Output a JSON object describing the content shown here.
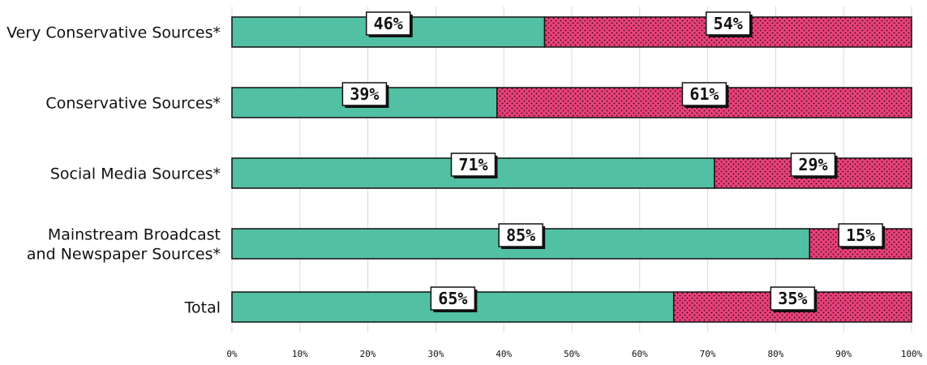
{
  "chart_data": {
    "type": "bar",
    "orientation": "horizontal",
    "stacked": true,
    "categories": [
      "Very Conservative Sources*",
      "Conservative Sources*",
      "Social Media Sources*",
      [
        "Mainstream Broadcast",
        "and Newspaper Sources*"
      ],
      "Total"
    ],
    "series": [
      {
        "values": [
          46,
          39,
          71,
          85,
          65
        ],
        "labels": [
          "46%",
          "39%",
          "71%",
          "85%",
          "65%"
        ],
        "color": "#52c0a3"
      },
      {
        "values": [
          54,
          61,
          29,
          15,
          35
        ],
        "labels": [
          "54%",
          "61%",
          "29%",
          "15%",
          "35%"
        ],
        "color": "#e8417b"
      }
    ],
    "xlim": [
      0,
      100
    ],
    "xticks": [
      "0%",
      "10%",
      "20%",
      "30%",
      "40%",
      "50%",
      "60%",
      "70%",
      "80%",
      "90%",
      "100%"
    ],
    "grid": true,
    "title": "",
    "xlabel": "",
    "ylabel": ""
  }
}
